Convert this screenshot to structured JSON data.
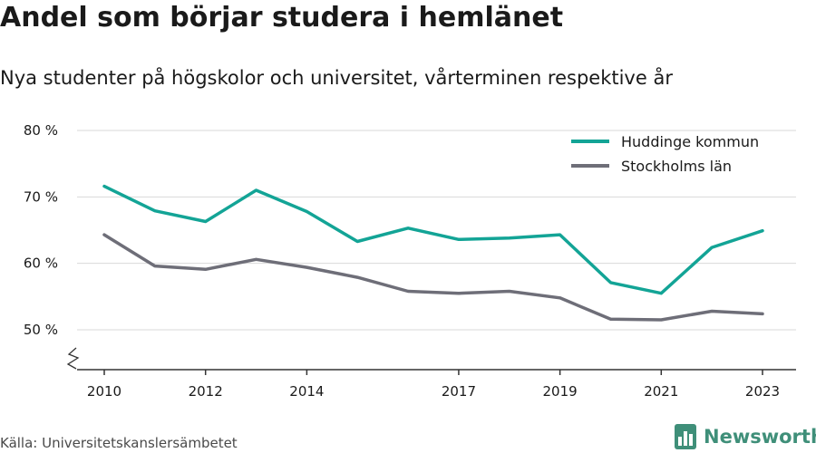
{
  "header": {
    "title": "Andel som börjar studera i hemlänet",
    "subtitle": "Nya studenter på högskolor och universitet, vårterminen respektive år"
  },
  "footer": {
    "source": "Källa: Universitetskanslersämbetet",
    "brand": "Newsworthy"
  },
  "colors": {
    "huddinge": "#13a496",
    "stockholm": "#6e6e78",
    "grid": "#d9d9d9",
    "axis": "#333333",
    "brand": "#3f8f79"
  },
  "icons": {
    "brand_logo": "bar-chart-icon"
  },
  "chart_data": {
    "type": "line",
    "title": "Andel som börjar studera i hemlänet",
    "subtitle": "Nya studenter på högskolor och universitet, vårterminen respektive år",
    "xlabel": "",
    "ylabel": "",
    "x": [
      2010,
      2011,
      2012,
      2013,
      2014,
      2015,
      2016,
      2017,
      2018,
      2019,
      2020,
      2021,
      2022,
      2023
    ],
    "series": [
      {
        "name": "Huddinge kommun",
        "color": "#13a496",
        "values": [
          71.6,
          67.9,
          66.3,
          71.0,
          67.8,
          63.3,
          65.3,
          63.6,
          63.8,
          64.3,
          57.1,
          55.5,
          62.4,
          64.9
        ]
      },
      {
        "name": "Stockholms län",
        "color": "#6e6e78",
        "values": [
          64.3,
          59.6,
          59.1,
          60.6,
          59.4,
          57.9,
          55.8,
          55.5,
          55.8,
          54.8,
          51.6,
          51.5,
          52.8,
          52.4
        ]
      }
    ],
    "xticks": [
      2010,
      2012,
      2014,
      2017,
      2019,
      2021,
      2023
    ],
    "xtick_labels": [
      "2010",
      "2012",
      "2014",
      "2017",
      "2019",
      "2021",
      "2023"
    ],
    "yticks": [
      50,
      60,
      70,
      80
    ],
    "ytick_labels": [
      "50 %",
      "60 %",
      "70 %",
      "80 %"
    ],
    "ylim": [
      50,
      80
    ],
    "axis_break": true,
    "grid": true,
    "legend_position": "top-right"
  }
}
